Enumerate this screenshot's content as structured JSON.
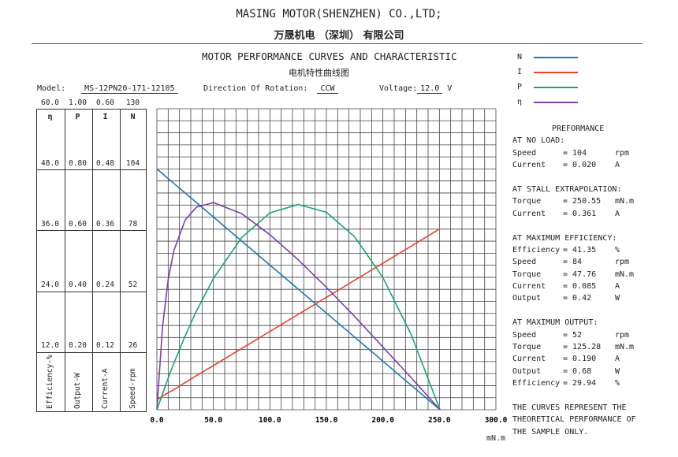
{
  "header": {
    "company_en": "MASING MOTOR(SHENZHEN) CO.,LTD;",
    "company_cn": "万晟机电 （深圳） 有限公司",
    "title_en": "MOTOR PERFORMANCE CURVES AND CHARACTERISTIC",
    "title_cn": "电机特性曲线图"
  },
  "info": {
    "model_label": "Model:",
    "model": "MS-12PN20-171-12105",
    "direction_label": "Direction Of Rotation:",
    "direction": "CCW",
    "voltage_label": "Voltage:",
    "voltage": "12.0",
    "voltage_unit": "V"
  },
  "legend": [
    {
      "label": "N",
      "color": "#1f77b4"
    },
    {
      "label": "I",
      "color": "#e8442a"
    },
    {
      "label": "P",
      "color": "#1aa866"
    },
    {
      "label": "η",
      "color": "#7b3fb0"
    }
  ],
  "performance": {
    "title": "PREFORMANCE",
    "sections": [
      {
        "heading": "AT NO LOAD:",
        "rows": [
          [
            "Speed",
            "= 104",
            "rpm"
          ],
          [
            "Current",
            "= 0.020",
            "A"
          ]
        ]
      },
      {
        "heading": "AT STALL EXTRAPOLATION:",
        "rows": [
          [
            "Torque",
            "= 250.55",
            "mN.m"
          ],
          [
            "Current",
            "= 0.361",
            "A"
          ]
        ]
      },
      {
        "heading": "AT MAXIMUM EFFICIENCY:",
        "rows": [
          [
            "Efficiency",
            "= 41.35",
            "%"
          ],
          [
            "Speed",
            "= 84",
            "rpm"
          ],
          [
            "Torque",
            "= 47.76",
            "mN.m"
          ],
          [
            "Current",
            "= 0.085",
            "A"
          ],
          [
            "Output",
            "= 0.42",
            "W"
          ]
        ]
      },
      {
        "heading": "AT MAXIMUM OUTPUT:",
        "rows": [
          [
            "Speed",
            "= 52",
            "rpm"
          ],
          [
            "Torque",
            "= 125.28",
            "mN.m"
          ],
          [
            "Current",
            "= 0.190",
            "A"
          ],
          [
            "Output",
            "= 0.68",
            "W"
          ],
          [
            "Efficiency",
            "= 29.94",
            "%"
          ]
        ]
      }
    ],
    "note": [
      "THE CURVES REPRESENT THE",
      "THEORETICAL PERFORMANCE OF",
      "THE SAMPLE ONLY."
    ]
  },
  "chart_data": {
    "type": "line",
    "title": "MOTOR PERFORMANCE CURVES AND CHARACTERISTIC",
    "xlabel": "mN.m",
    "xlim": [
      0,
      300
    ],
    "x_ticks": [
      "0.0",
      "50.0",
      "100.0",
      "150.0",
      "200.0",
      "250.0",
      "300.0"
    ],
    "y_axes": {
      "eta": {
        "header": "η",
        "label": "Efficiency-%",
        "range": [
          0,
          60
        ],
        "ticks": [
          "60.0",
          "48.0",
          "36.0",
          "24.0",
          "12.0"
        ]
      },
      "P": {
        "header": "P",
        "label": "Output-W",
        "range": [
          0,
          1
        ],
        "ticks": [
          "1.00",
          "0.80",
          "0.60",
          "0.40",
          "0.20"
        ]
      },
      "I": {
        "header": "I",
        "label": "Current-A",
        "range": [
          0,
          0.6
        ],
        "ticks": [
          "0.60",
          "0.48",
          "0.36",
          "0.24",
          "0.12"
        ]
      },
      "N": {
        "header": "N",
        "label": "Speed-rpm",
        "range": [
          0,
          130
        ],
        "ticks": [
          "130",
          "104",
          "78",
          "52",
          "26"
        ]
      }
    },
    "grid": true,
    "x": [
      0,
      5,
      10,
      15,
      25,
      35,
      50,
      75,
      100,
      125,
      150,
      175,
      200,
      225,
      250.55
    ],
    "series": [
      {
        "name": "N",
        "axis": "N",
        "values": [
          104,
          101.92,
          99.85,
          97.77,
          93.62,
          89.47,
          83.25,
          72.87,
          62.49,
          52.11,
          41.74,
          31.36,
          20.98,
          10.6,
          0
        ]
      },
      {
        "name": "I",
        "axis": "I",
        "values": [
          0.02,
          0.027,
          0.034,
          0.04,
          0.054,
          0.068,
          0.088,
          0.122,
          0.156,
          0.19,
          0.224,
          0.258,
          0.292,
          0.326,
          0.361
        ]
      },
      {
        "name": "P",
        "axis": "P",
        "values": [
          0,
          0.053,
          0.105,
          0.154,
          0.245,
          0.328,
          0.436,
          0.572,
          0.654,
          0.682,
          0.656,
          0.575,
          0.439,
          0.25,
          0
        ]
      },
      {
        "name": "η",
        "axis": "eta",
        "values": [
          0,
          16.6,
          25.9,
          31.7,
          37.8,
          40.4,
          41.3,
          39.1,
          34.9,
          29.9,
          24.4,
          18.6,
          12.5,
          6.4,
          0
        ]
      }
    ]
  }
}
